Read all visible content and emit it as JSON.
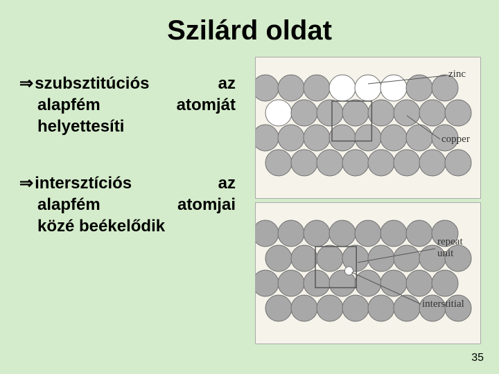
{
  "title": "Szilárd oldat",
  "bullet1": {
    "term": "szubsztitúciós",
    "rest1": "az",
    "line2a": "alapfém",
    "line2b": "atomját",
    "line3": "helyettesíti"
  },
  "bullet2": {
    "term": "intersztíciós",
    "rest1": "az",
    "line2a": "alapfém",
    "line2b": "atomjai",
    "line3": "közé beékelődik"
  },
  "diagram1": {
    "label_zinc": "zinc",
    "label_copper": "copper",
    "atom_copper_color": "#b0b0b0",
    "atom_zinc_color": "#ffffff",
    "atom_stroke": "#707070",
    "box_stroke": "#555",
    "rows": 4,
    "cols": 8,
    "radius": 19,
    "zinc_positions": [
      [
        0,
        3
      ],
      [
        0,
        4
      ],
      [
        0,
        5
      ],
      [
        1,
        0
      ]
    ]
  },
  "diagram2": {
    "label_repeat": "repeat",
    "label_unit": "unit",
    "label_interstitial": "interstitial",
    "atom_color": "#a8a8a8",
    "atom_stroke": "#707070",
    "interstitial_color": "#ffffff",
    "box_stroke": "#555",
    "rows": 4,
    "cols": 8,
    "radius": 19
  },
  "slide_number": "35",
  "colors": {
    "background": "#d4eccb",
    "diagram_bg": "#f5f3ea"
  }
}
